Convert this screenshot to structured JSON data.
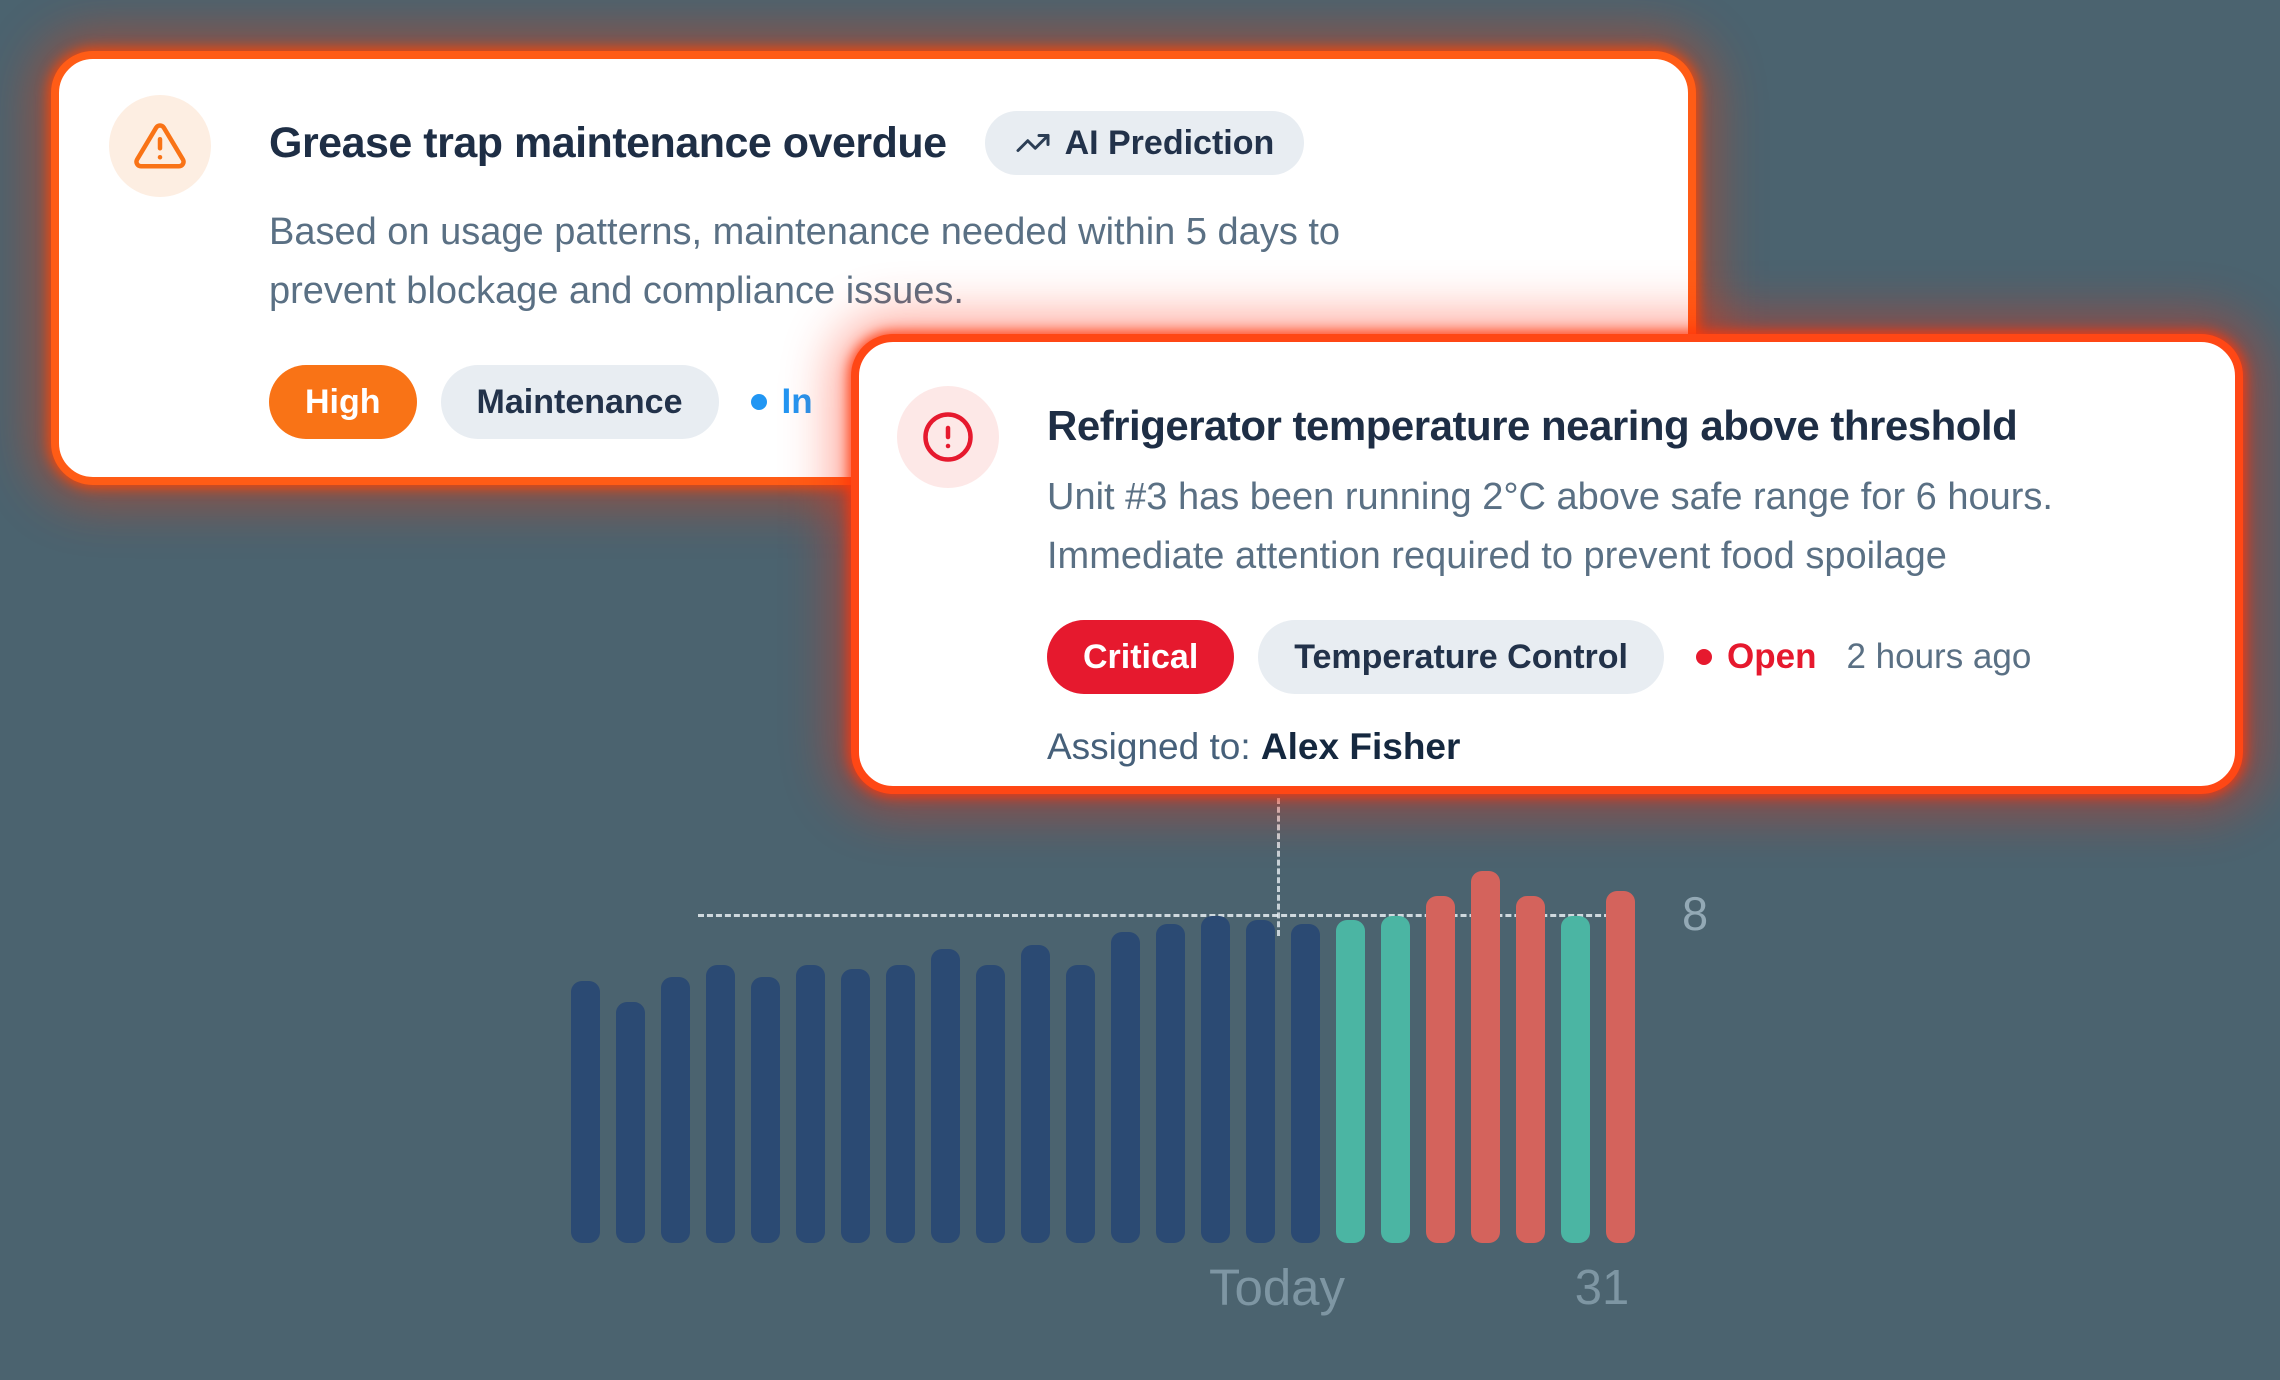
{
  "palette": {
    "background": "#4b636f",
    "card_border_orange": "#ff5c16",
    "card_border_red_orange": "#ff4715",
    "high_orange": "#f97316",
    "critical_red": "#e6192e",
    "status_blue": "#2196f3",
    "title_navy": "#1e2e45",
    "body_gray": "#5a7084",
    "pill_gray_bg": "#e8edf2",
    "axis_label_gray": "#7e96a3"
  },
  "alert_card_1": {
    "title": "Grease trap maintenance overdue",
    "badge": "AI Prediction",
    "description_lines": [
      "Based on usage patterns, maintenance needed within 5 days to",
      "prevent blockage and compliance issues."
    ],
    "severity": "High",
    "category": "Maintenance",
    "status": "In"
  },
  "alert_card_2": {
    "title": "Refrigerator temperature nearing above threshold",
    "description_lines": [
      "Unit #3 has been running 2°C above safe range for 6 hours.",
      "Immediate attention required to prevent food spoilage"
    ],
    "severity": "Critical",
    "category": "Temperature Control",
    "status": "Open",
    "time": "2 hours ago",
    "assigned_label": "Assigned to:",
    "assignee": "Alex Fisher"
  },
  "chart_data": {
    "type": "bar",
    "values": [
      6.4,
      5.9,
      6.5,
      6.8,
      6.5,
      6.8,
      6.7,
      6.8,
      7.2,
      6.8,
      7.3,
      6.8,
      7.6,
      7.8,
      8.0,
      7.9,
      7.8,
      7.9,
      8.0,
      8.5,
      9.1,
      8.5,
      8.0,
      8.6
    ],
    "bar_segments": [
      "past",
      "past",
      "past",
      "past",
      "past",
      "past",
      "past",
      "past",
      "past",
      "past",
      "past",
      "past",
      "past",
      "past",
      "past",
      "past",
      "past",
      "forecast_ok",
      "forecast_ok",
      "forecast_risk",
      "forecast_risk",
      "forecast_risk",
      "forecast_ok",
      "forecast_risk"
    ],
    "colors": {
      "past": "#2b4a73",
      "forecast_ok": "#4bb5a3",
      "forecast_risk": "#d4635c"
    },
    "threshold": 8,
    "threshold_label": "8",
    "today_label": "Today",
    "last_day_label": "31",
    "today_index": 17,
    "ylim": [
      0,
      9.5
    ],
    "grid": "dashed-threshold-only",
    "legend": "none"
  }
}
